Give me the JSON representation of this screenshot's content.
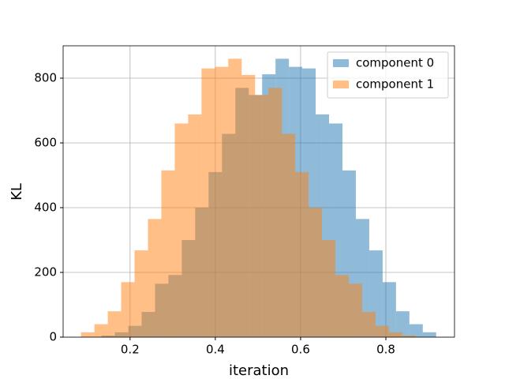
{
  "chart_data": {
    "type": "histogram",
    "xlabel": "iteration",
    "ylabel": "KL",
    "xlim": [
      0.043,
      0.961
    ],
    "ylim": [
      0,
      900
    ],
    "xticks": [
      0.2,
      0.4,
      0.6,
      0.8
    ],
    "yticks": [
      0,
      200,
      400,
      600,
      800
    ],
    "grid": true,
    "legend": "upper right",
    "opacity": 0.5,
    "series": [
      {
        "name": "component 0",
        "color": "#1f77b4",
        "bins": [
          0.133,
          0.1644,
          0.1958,
          0.2272,
          0.2586,
          0.29,
          0.3214,
          0.3528,
          0.3842,
          0.4156,
          0.447,
          0.4784,
          0.5098,
          0.5412,
          0.5726,
          0.604,
          0.6354,
          0.6668,
          0.6982,
          0.7296,
          0.761,
          0.7924,
          0.8238,
          0.8552,
          0.8866,
          0.918
        ],
        "values": [
          5,
          15,
          35,
          78,
          165,
          192,
          300,
          400,
          510,
          628,
          770,
          748,
          812,
          860,
          835,
          830,
          688,
          660,
          515,
          365,
          268,
          170,
          80,
          40,
          15
        ]
      },
      {
        "name": "component 1",
        "color": "#ff7f0e",
        "bins": [
          0.085,
          0.1164,
          0.1478,
          0.1792,
          0.2106,
          0.242,
          0.2734,
          0.3048,
          0.3362,
          0.3676,
          0.399,
          0.4304,
          0.4618,
          0.4932,
          0.5246,
          0.556,
          0.5874,
          0.6188,
          0.6502,
          0.6816,
          0.713,
          0.7444,
          0.7758,
          0.8072,
          0.8386,
          0.87
        ],
        "values": [
          15,
          40,
          80,
          170,
          268,
          365,
          515,
          660,
          688,
          830,
          835,
          860,
          810,
          748,
          770,
          628,
          510,
          400,
          300,
          192,
          165,
          78,
          35,
          15,
          5
        ]
      }
    ]
  }
}
